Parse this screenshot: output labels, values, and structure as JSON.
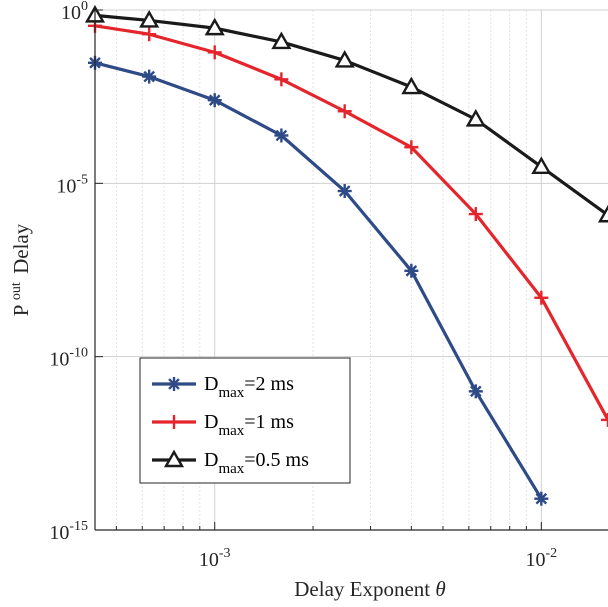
{
  "chart_data": {
    "type": "line",
    "xscale": "log",
    "yscale": "log",
    "xlim": [
      0.00043,
      0.016
    ],
    "ylim": [
      1e-15,
      1
    ],
    "grid": true,
    "xlabel": "Delay Exponent",
    "xlabel_symbol": "θ",
    "ylabel": {
      "base": "P",
      "sup": "out",
      "rest": "Delay"
    },
    "xticks": [
      {
        "value": 0.001,
        "base": "10",
        "exp": "-3"
      },
      {
        "value": 0.01,
        "base": "10",
        "exp": "-2"
      }
    ],
    "yticks": [
      {
        "value": 1,
        "base": "10",
        "exp": "0"
      },
      {
        "value": 1e-05,
        "base": "10",
        "exp": "-5"
      },
      {
        "value": 1e-10,
        "base": "10",
        "exp": "-10"
      },
      {
        "value": 1e-15,
        "base": "10",
        "exp": "-15"
      }
    ],
    "legend_position": "bottom-left",
    "series": [
      {
        "name": {
          "pre": "D",
          "sub": "max",
          "post": "=2 ms"
        },
        "color": "#2E4A87",
        "marker": "asterisk",
        "x": [
          0.00043,
          0.00063,
          0.001,
          0.0016,
          0.0025,
          0.004,
          0.0063,
          0.01
        ],
        "y": [
          0.03,
          0.012,
          0.0025,
          0.00024,
          6e-06,
          3e-08,
          1e-11,
          8e-15
        ]
      },
      {
        "name": {
          "pre": "D",
          "sub": "max",
          "post": "=1 ms"
        },
        "color": "#E4252B",
        "marker": "plus",
        "x": [
          0.00043,
          0.00063,
          0.001,
          0.0016,
          0.0025,
          0.004,
          0.0063,
          0.01,
          0.016
        ],
        "y": [
          0.35,
          0.2,
          0.06,
          0.01,
          0.0012,
          0.00011,
          1.3e-06,
          5e-09,
          1.5e-12
        ]
      },
      {
        "name": {
          "pre": "D",
          "sub": "max",
          "post": "=0.5 ms"
        },
        "color": "#1A1A1A",
        "marker": "triangle",
        "x": [
          0.00043,
          0.00063,
          0.001,
          0.0016,
          0.0025,
          0.004,
          0.0063,
          0.01,
          0.016
        ],
        "y": [
          0.7,
          0.5,
          0.3,
          0.12,
          0.035,
          0.006,
          0.0007,
          3e-05,
          1.2e-06
        ]
      }
    ]
  }
}
